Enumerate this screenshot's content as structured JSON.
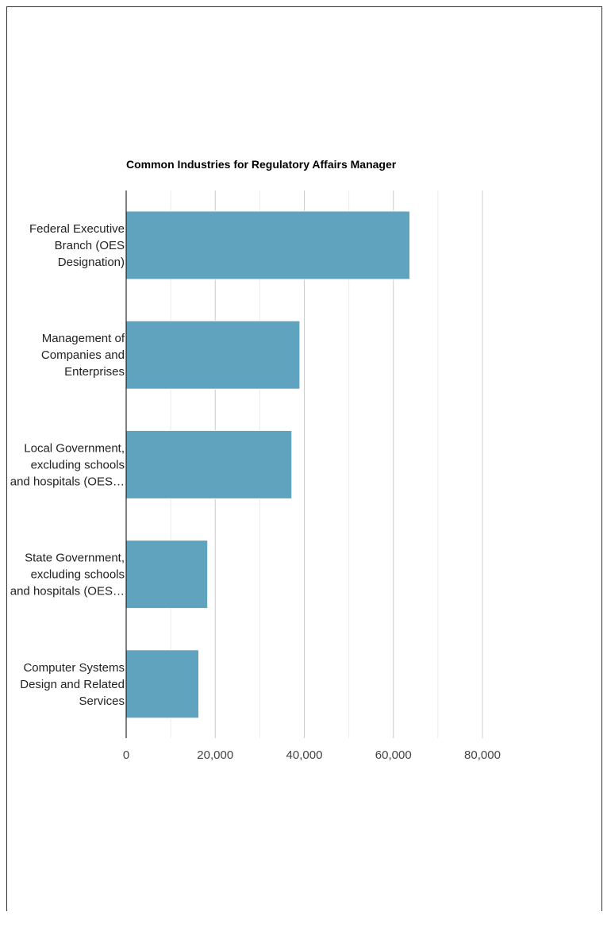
{
  "chart_data": {
    "type": "bar",
    "orientation": "horizontal",
    "title": "Common Industries for Regulatory Affairs Manager",
    "categories": [
      [
        "Federal Executive",
        "Branch (OES",
        "Designation)"
      ],
      [
        "Management of",
        "Companies and",
        "Enterprises"
      ],
      [
        "Local Government,",
        "excluding schools",
        "and hospitals (OES…"
      ],
      [
        "State Government,",
        "excluding schools",
        "and hospitals (OES…"
      ],
      [
        "Computer Systems",
        "Design and Related",
        "Services"
      ]
    ],
    "values": [
      63700,
      39000,
      37200,
      18300,
      16300
    ],
    "xlim": [
      0,
      90000
    ],
    "ticks": [
      0,
      20000,
      40000,
      60000,
      80000
    ],
    "tick_labels": [
      "0",
      "20,000",
      "40,000",
      "60,000",
      "80,000"
    ],
    "minor_grid_step": 10000,
    "grid": true,
    "legend": "none",
    "bar_color": "#5fa3bf",
    "grid_color": "#cccccc",
    "minor_grid_color": "#ebebeb",
    "axis_color": "#000000"
  }
}
